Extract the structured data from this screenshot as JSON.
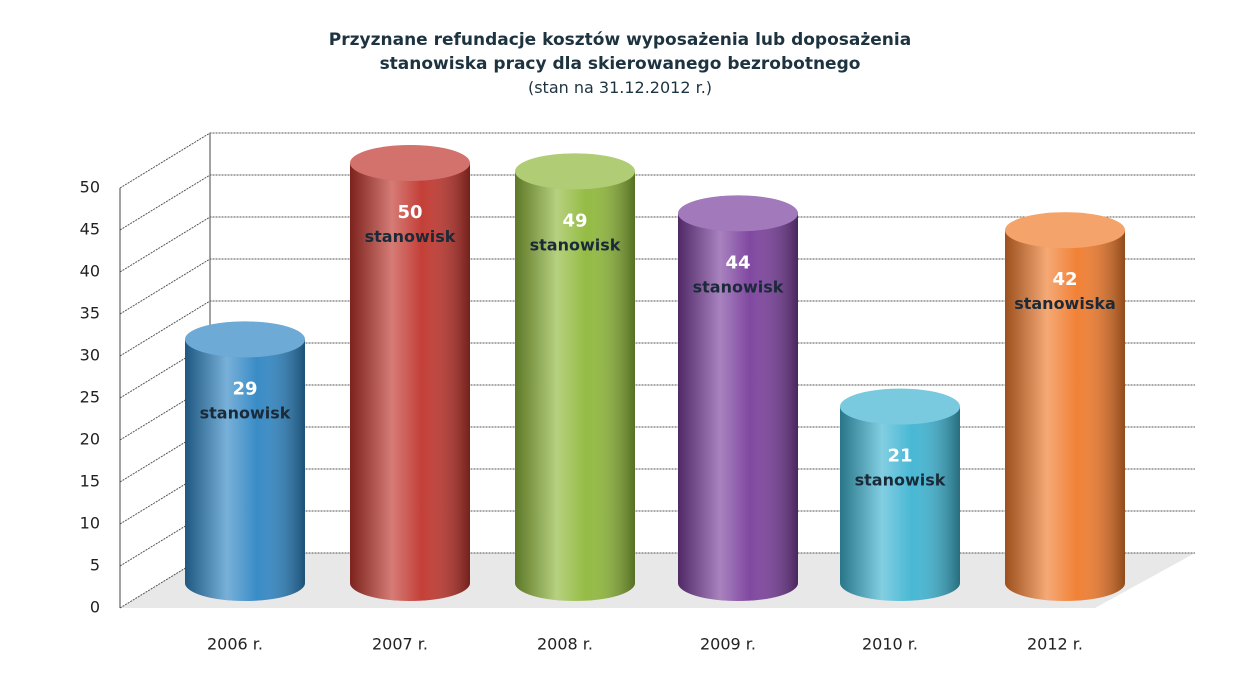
{
  "chart_data": {
    "type": "bar",
    "title": "Przyznane refundacje kosztów wyposażenia lub doposażenia stanowiska pracy dla skierowanego bezrobotnego",
    "subtitle": "(stan na 31.12.2012 r.)",
    "categories": [
      "2006 r.",
      "2007 r.",
      "2008 r.",
      "2009 r.",
      "2010 r.",
      "2012 r."
    ],
    "values": [
      29,
      50,
      49,
      44,
      21,
      42
    ],
    "value_labels": [
      "29 stanowisk",
      "50 stanowisk",
      "49 stanowisk",
      "44 stanowisk",
      "21 stanowisk",
      "42 stanowiska"
    ],
    "colors": [
      "#2f86c4",
      "#c0352d",
      "#8fb83a",
      "#7a3f9c",
      "#3fb4d2",
      "#f07b2c"
    ],
    "ylim": [
      0,
      50
    ],
    "yticks": [
      0,
      5,
      10,
      15,
      20,
      25,
      30,
      35,
      40,
      45,
      50
    ],
    "grid": true
  }
}
